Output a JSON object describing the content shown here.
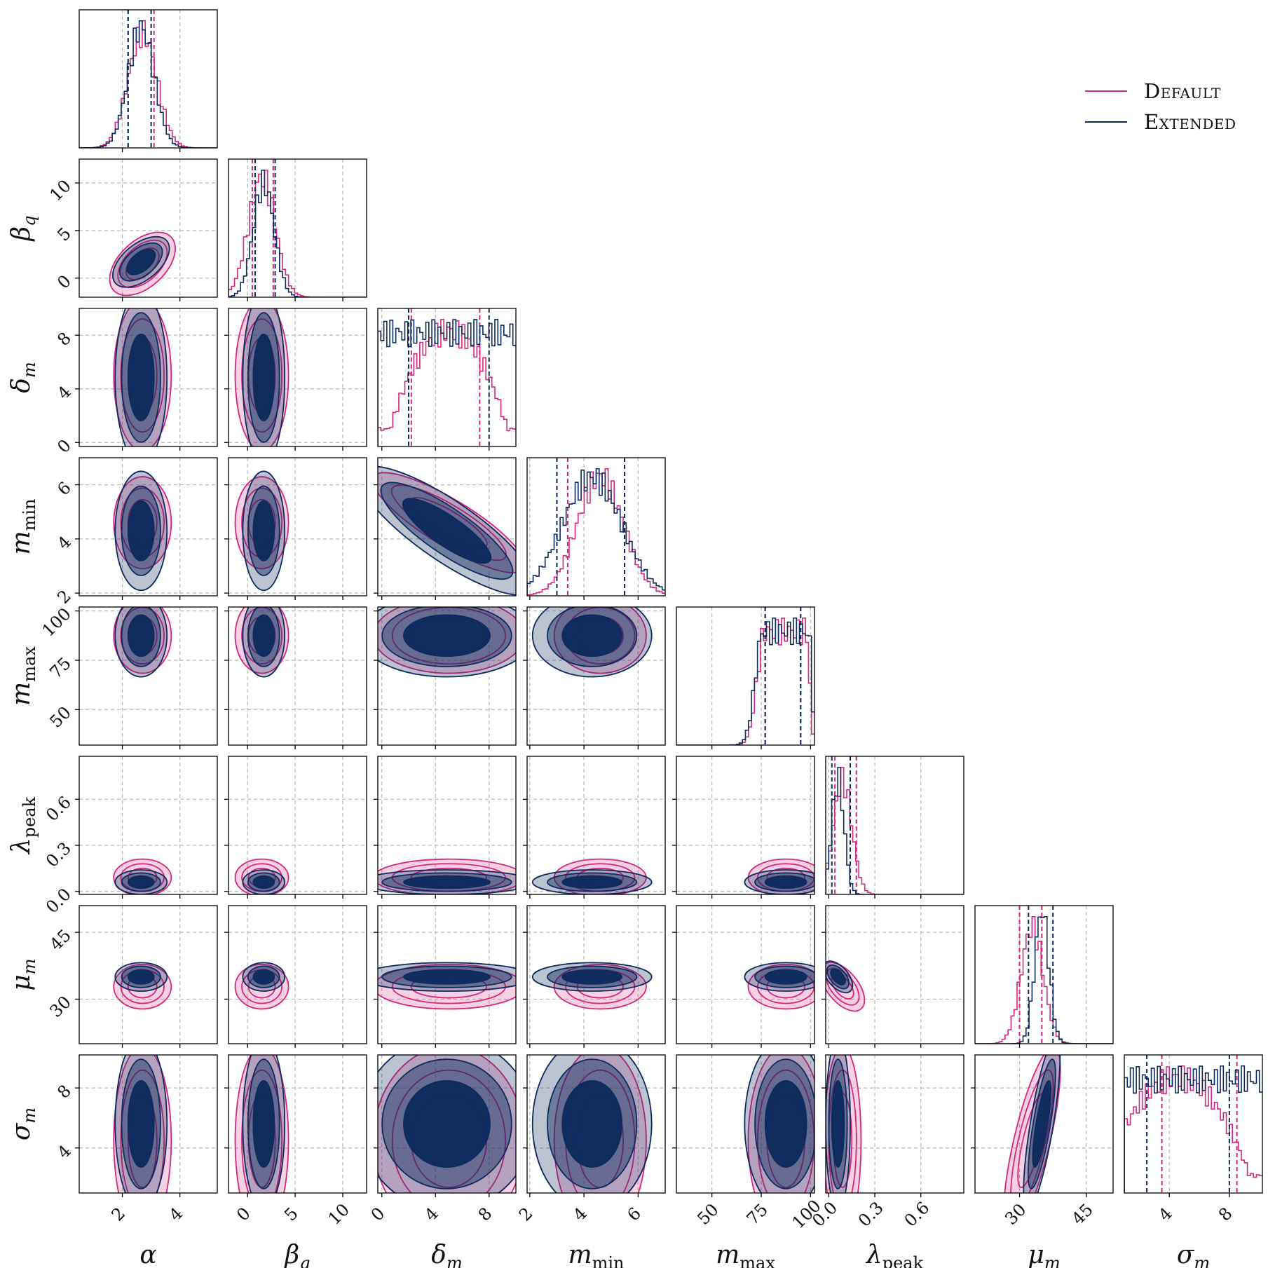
{
  "colors": {
    "default": "#d6277f",
    "extended": "#0d2a5e"
  },
  "legend": {
    "default_label": "Default",
    "extended_label": "Extended"
  },
  "chart_data": {
    "type": "corner",
    "params": [
      {
        "key": "alpha",
        "label": "α",
        "sub": "",
        "range": [
          0.5,
          5.3
        ],
        "ticks": [
          2,
          4
        ],
        "ticklabels": [
          "2",
          "4"
        ]
      },
      {
        "key": "beta_q",
        "label": "β",
        "sub": "q",
        "range": [
          -2,
          12.5
        ],
        "ticks": [
          0,
          5,
          10
        ],
        "ticklabels": [
          "0",
          "5",
          "10"
        ]
      },
      {
        "key": "delta_m",
        "label": "δ",
        "sub": "m",
        "range": [
          -0.3,
          10
        ],
        "ticks": [
          0,
          4,
          8
        ],
        "ticklabels": [
          "0",
          "4",
          "8"
        ]
      },
      {
        "key": "m_min",
        "label": "m",
        "sub": "min",
        "range": [
          1.9,
          7.0
        ],
        "ticks": [
          2,
          4,
          6
        ],
        "ticklabels": [
          "2",
          "4",
          "6"
        ]
      },
      {
        "key": "m_max",
        "label": "m",
        "sub": "max",
        "range": [
          32,
          102
        ],
        "ticks": [
          50,
          75,
          100
        ],
        "ticklabels": [
          "50",
          "75",
          "100"
        ]
      },
      {
        "key": "lambda_peak",
        "label": "λ",
        "sub": "peak",
        "range": [
          -0.02,
          0.88
        ],
        "ticks": [
          0.0,
          0.3,
          0.6
        ],
        "ticklabels": [
          "0.0",
          "0.3",
          "0.6"
        ]
      },
      {
        "key": "mu_m",
        "label": "μ",
        "sub": "m",
        "range": [
          20,
          51
        ],
        "ticks": [
          30,
          45
        ],
        "ticklabels": [
          "30",
          "45"
        ]
      },
      {
        "key": "sigma_m",
        "label": "σ",
        "sub": "m",
        "range": [
          1.0,
          10.2
        ],
        "ticks": [
          4,
          8
        ],
        "ticklabels": [
          "4",
          "8"
        ]
      }
    ],
    "dists": {
      "default": [
        {
          "type": "gauss",
          "mean": 2.7,
          "sd": 0.5,
          "lo": 2.2,
          "hi": 3.1
        },
        {
          "type": "gauss",
          "mean": 1.5,
          "sd": 1.4,
          "lo": 0.5,
          "hi": 2.7
        },
        {
          "type": "bump",
          "center": 5.0,
          "width": 4.5,
          "lo": 2.2,
          "hi": 7.3
        },
        {
          "type": "gauss",
          "mean": 4.6,
          "sd": 0.85,
          "lo": 3.4,
          "hi": 5.5
        },
        {
          "type": "plateau",
          "a": 77,
          "b": 98,
          "lo": 77,
          "hi": 95
        },
        {
          "type": "gauss",
          "mean": 0.09,
          "sd": 0.06,
          "lo": 0.04,
          "hi": 0.18
        },
        {
          "type": "gauss",
          "mean": 32.8,
          "sd": 2.5,
          "lo": 30.0,
          "hi": 35.0
        },
        {
          "type": "bump",
          "center": 4.5,
          "width": 5.0,
          "lo": 3.5,
          "hi": 8.5
        }
      ],
      "extended": [
        {
          "type": "gauss",
          "mean": 2.65,
          "sd": 0.45,
          "lo": 2.2,
          "hi": 3.0
        },
        {
          "type": "gauss",
          "mean": 1.7,
          "sd": 1.1,
          "lo": 0.8,
          "hi": 2.9
        },
        {
          "type": "flat",
          "lo": 2.0,
          "hi": 8.0
        },
        {
          "type": "gauss",
          "mean": 4.3,
          "sd": 1.1,
          "lo": 3.0,
          "hi": 5.5
        },
        {
          "type": "plateau",
          "a": 76,
          "b": 99,
          "lo": 77,
          "hi": 95
        },
        {
          "type": "gauss",
          "mean": 0.06,
          "sd": 0.04,
          "lo": 0.02,
          "hi": 0.14
        },
        {
          "type": "gauss",
          "mean": 35.0,
          "sd": 1.6,
          "lo": 32.0,
          "hi": 37.5
        },
        {
          "type": "flat",
          "lo": 2.5,
          "hi": 8.0
        }
      ]
    },
    "sigma_levels": [
      1,
      1.5,
      2
    ],
    "grid": true
  }
}
